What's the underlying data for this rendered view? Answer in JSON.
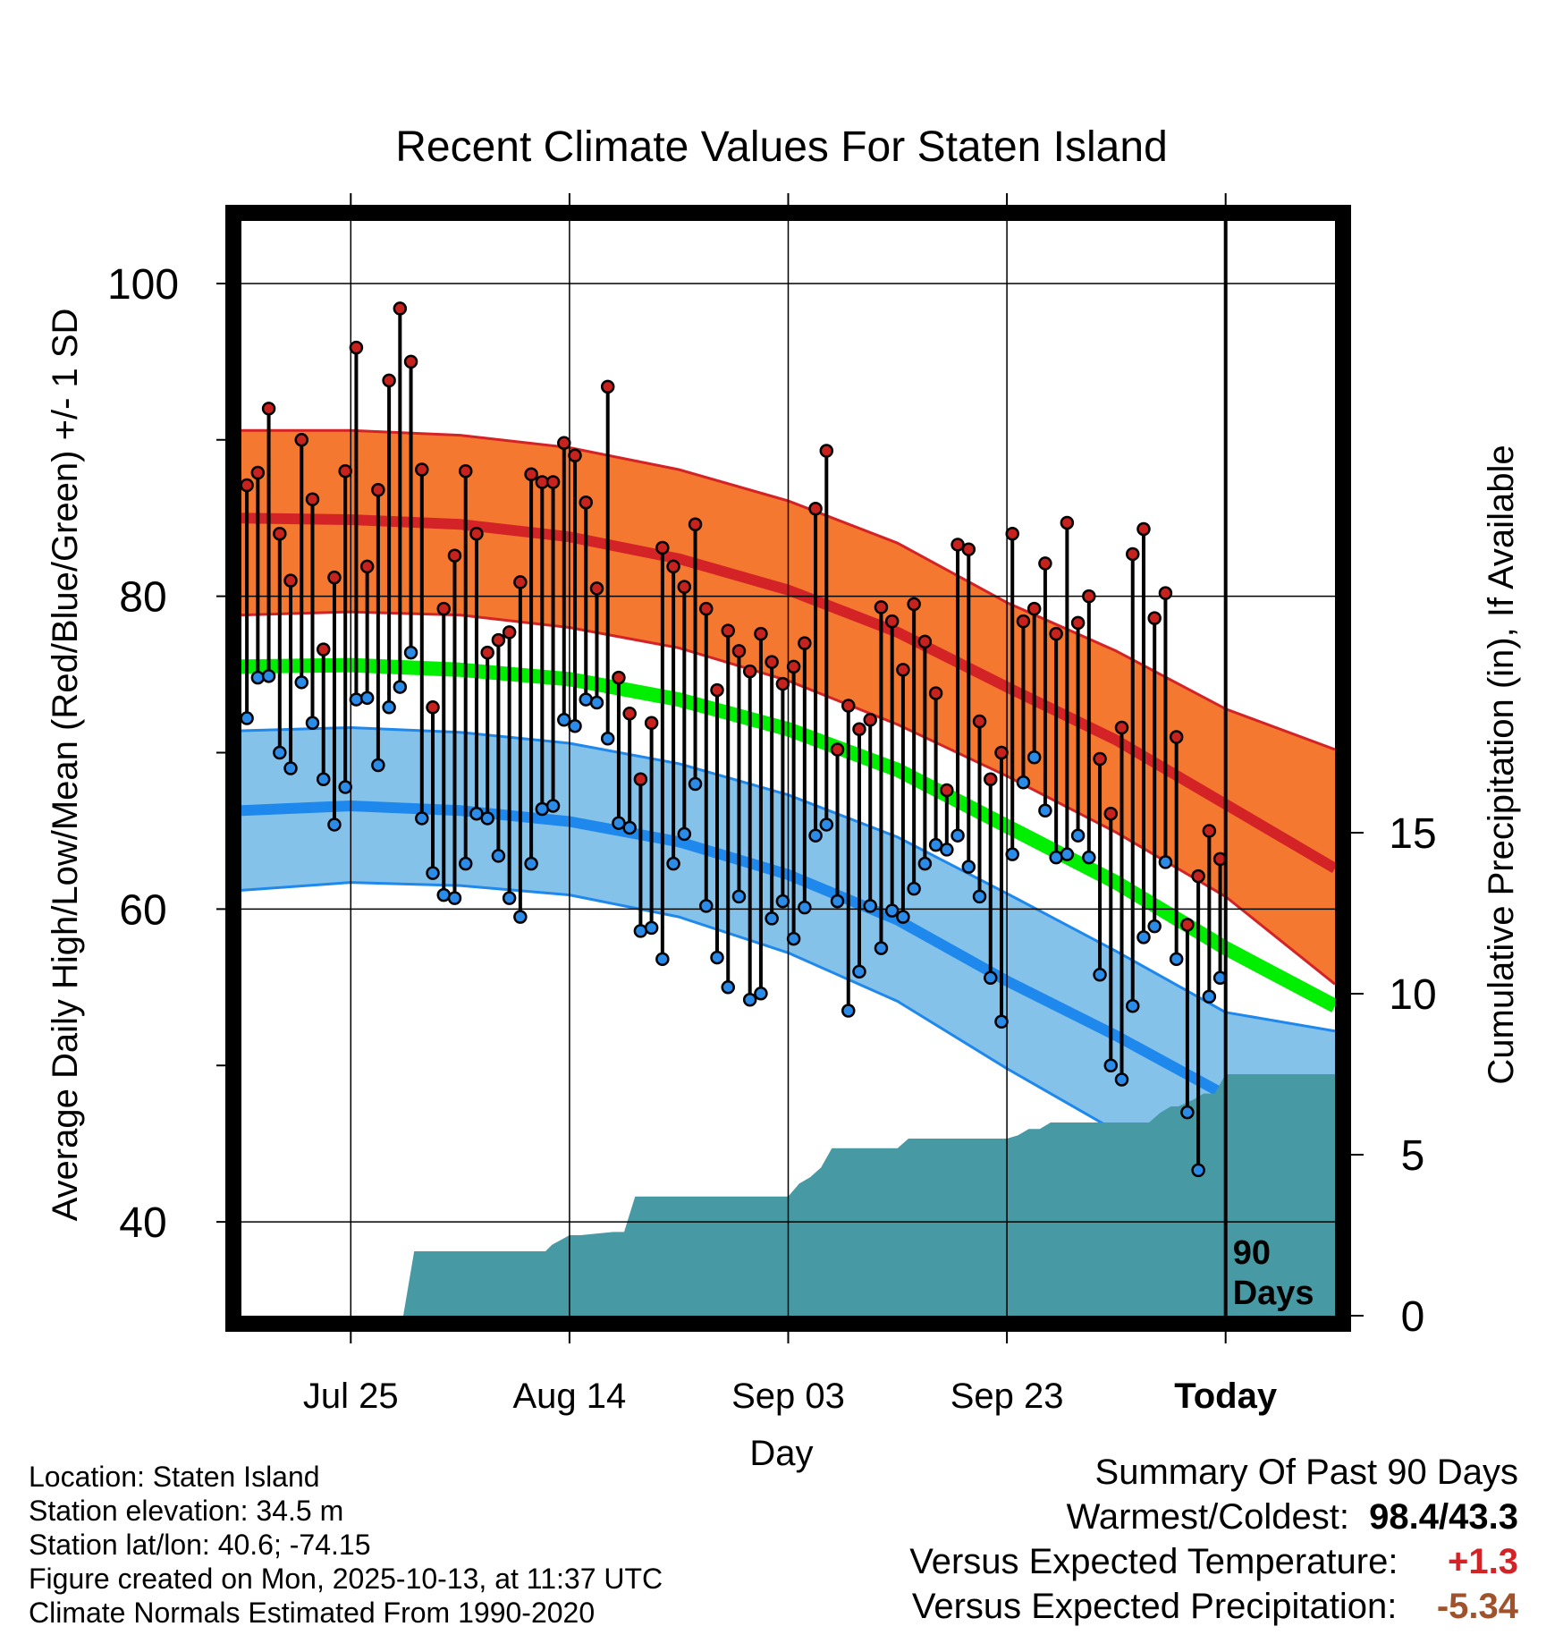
{
  "chart_data": {
    "type": "line",
    "title": "Recent Climate Values For Staten Island",
    "xlabel": "Day",
    "ylabel": "Average Daily High/Low/Mean (Red/Blue/Green) +/- 1 SD",
    "y2label": "Cumulative Precipitation (in), If Available",
    "xlim": [
      -10,
      90
    ],
    "ylim": [
      34,
      104
    ],
    "y2lim": [
      0,
      34
    ],
    "yticks": [
      40,
      60,
      80,
      100
    ],
    "y2ticks": [
      0,
      5,
      10,
      15
    ],
    "xticks": [
      {
        "day": 0,
        "label": "Jul 25"
      },
      {
        "day": 20,
        "label": "Aug 14"
      },
      {
        "day": 40,
        "label": "Sep 03"
      },
      {
        "day": 60,
        "label": "Sep 23"
      },
      {
        "day": 80,
        "label": "Today"
      }
    ],
    "today_label": "90 Days",
    "normals": {
      "days": [
        -10,
        0,
        10,
        20,
        30,
        40,
        50,
        60,
        70,
        80,
        90
      ],
      "high_mean": [
        85.0,
        84.9,
        84.6,
        83.8,
        82.4,
        80.4,
        77.7,
        74.2,
        70.8,
        66.7,
        62.6
      ],
      "high_sd_upper": [
        90.6,
        90.6,
        90.3,
        89.5,
        88.1,
        86.1,
        83.4,
        79.6,
        76.5,
        72.8,
        70.2
      ],
      "high_sd_lower": [
        78.8,
        79.0,
        78.8,
        78.0,
        76.7,
        74.6,
        71.8,
        68.5,
        64.9,
        60.8,
        55.2
      ],
      "mean": [
        75.5,
        75.6,
        75.3,
        74.7,
        73.4,
        71.5,
        68.9,
        65.3,
        61.7,
        57.5,
        53.8
      ],
      "low_mean": [
        66.3,
        66.6,
        66.3,
        65.6,
        64.3,
        62.2,
        59.3,
        55.4,
        51.9,
        48.1,
        44.8
      ],
      "low_sd_upper": [
        71.4,
        71.6,
        71.3,
        70.6,
        69.3,
        67.3,
        64.6,
        61.0,
        57.3,
        53.4,
        52.2
      ],
      "low_sd_lower": [
        61.2,
        61.7,
        61.5,
        60.9,
        59.5,
        57.2,
        54.1,
        49.8,
        45.8,
        41.8,
        38.0
      ]
    },
    "series": [
      {
        "name": "Daily High",
        "values": [
          87.1,
          87.9,
          92.0,
          84.0,
          81.0,
          90.0,
          86.2,
          76.6,
          81.2,
          88.0,
          95.9,
          81.9,
          86.8,
          93.8,
          98.4,
          95.0,
          88.1,
          72.9,
          79.2,
          82.6,
          88.0,
          84.0,
          76.4,
          77.2,
          77.7,
          80.9,
          87.8,
          87.3,
          87.3,
          89.8,
          89.0,
          86.0,
          80.5,
          93.4,
          74.8,
          72.5,
          68.3,
          71.9,
          83.1,
          81.9,
          80.6,
          84.6,
          79.2,
          74.0,
          77.8,
          76.5,
          75.2,
          77.6,
          75.8,
          74.4,
          75.5,
          77.0,
          85.6,
          89.3,
          70.2,
          73.0,
          71.5,
          72.1,
          79.3,
          78.4,
          75.3,
          79.5,
          77.1,
          73.8,
          67.6,
          83.3,
          83.0,
          72.0,
          68.3,
          70.0,
          84.0,
          78.4,
          79.2,
          82.1,
          77.6,
          84.7,
          78.3,
          80.0,
          69.6,
          66.1,
          71.6,
          82.7,
          84.3,
          78.6,
          80.2,
          71.0,
          59.0,
          62.1,
          65.0,
          63.2
        ]
      },
      {
        "name": "Daily Low",
        "values": [
          72.2,
          74.8,
          74.9,
          70.0,
          69.0,
          74.5,
          71.9,
          68.3,
          65.4,
          67.8,
          73.4,
          73.5,
          69.2,
          72.9,
          74.2,
          76.4,
          65.8,
          62.3,
          60.9,
          60.7,
          62.9,
          66.1,
          65.8,
          63.4,
          60.7,
          59.5,
          62.9,
          66.4,
          66.6,
          72.1,
          71.7,
          73.4,
          73.2,
          70.9,
          65.5,
          65.2,
          58.6,
          58.8,
          56.8,
          62.9,
          64.8,
          68.0,
          60.2,
          56.9,
          55.0,
          60.8,
          54.2,
          54.6,
          59.4,
          60.5,
          58.1,
          60.1,
          64.7,
          65.4,
          60.5,
          53.5,
          56.0,
          60.2,
          57.5,
          59.9,
          59.5,
          61.3,
          62.9,
          64.1,
          63.8,
          64.7,
          62.7,
          60.8,
          55.6,
          52.8,
          63.5,
          68.1,
          69.7,
          66.3,
          63.3,
          63.5,
          64.7,
          63.3,
          55.8,
          50.0,
          49.1,
          53.8,
          58.2,
          58.9,
          63.0,
          56.8,
          47.0,
          43.3,
          54.4,
          55.6
        ]
      }
    ],
    "precip_cumulative": {
      "days": [
        -10,
        4.8,
        5.8,
        17.8,
        18.4,
        20.0,
        21.0,
        24.0,
        25.0,
        26.0,
        40.0,
        41.0,
        42.0,
        43.0,
        44.0,
        50.0,
        51.0,
        52.0,
        60.0,
        61.0,
        62.0,
        63.0,
        64.0,
        73.0,
        74.0,
        75.0,
        75.7,
        77.0,
        78.0,
        79.0,
        80.0,
        90.0
      ],
      "values": [
        0,
        0,
        2.0,
        2.0,
        2.2,
        2.5,
        2.5,
        2.6,
        2.6,
        3.7,
        3.7,
        4.1,
        4.3,
        4.6,
        5.2,
        5.2,
        5.5,
        5.5,
        5.5,
        5.6,
        5.8,
        5.8,
        6.0,
        6.0,
        6.3,
        6.5,
        6.5,
        6.7,
        6.9,
        6.9,
        7.5,
        7.5
      ]
    }
  },
  "info": {
    "location": "Location: Staten Island",
    "elevation": "Station elevation: 34.5 m",
    "latlon": "Station lat/lon: 40.6; -74.15",
    "created": "Figure created on Mon, 2025-10-13, at 11:37 UTC",
    "normals": "Climate Normals Estimated From 1990-2020"
  },
  "summary": {
    "title": "Summary Of Past 90 Days",
    "warm_cold_label": "Warmest/Coldest:",
    "warm_cold_value": "98.4/43.3",
    "temp_label": "Versus Expected Temperature:",
    "temp_value": "+1.3",
    "precip_label": "Versus Expected Precipitation:",
    "precip_value": "-5.34"
  },
  "colors": {
    "high_band": "#f4782f",
    "high_line": "#d42327",
    "low_band": "#85c2ea",
    "low_line": "#1e88ec",
    "mean_line": "#00ee00",
    "precip_fill": "#479aa3",
    "high_dot": "#c8221f",
    "low_dot": "#2a8be8",
    "temp_value": "#d42327",
    "precip_value": "#a0522d"
  }
}
